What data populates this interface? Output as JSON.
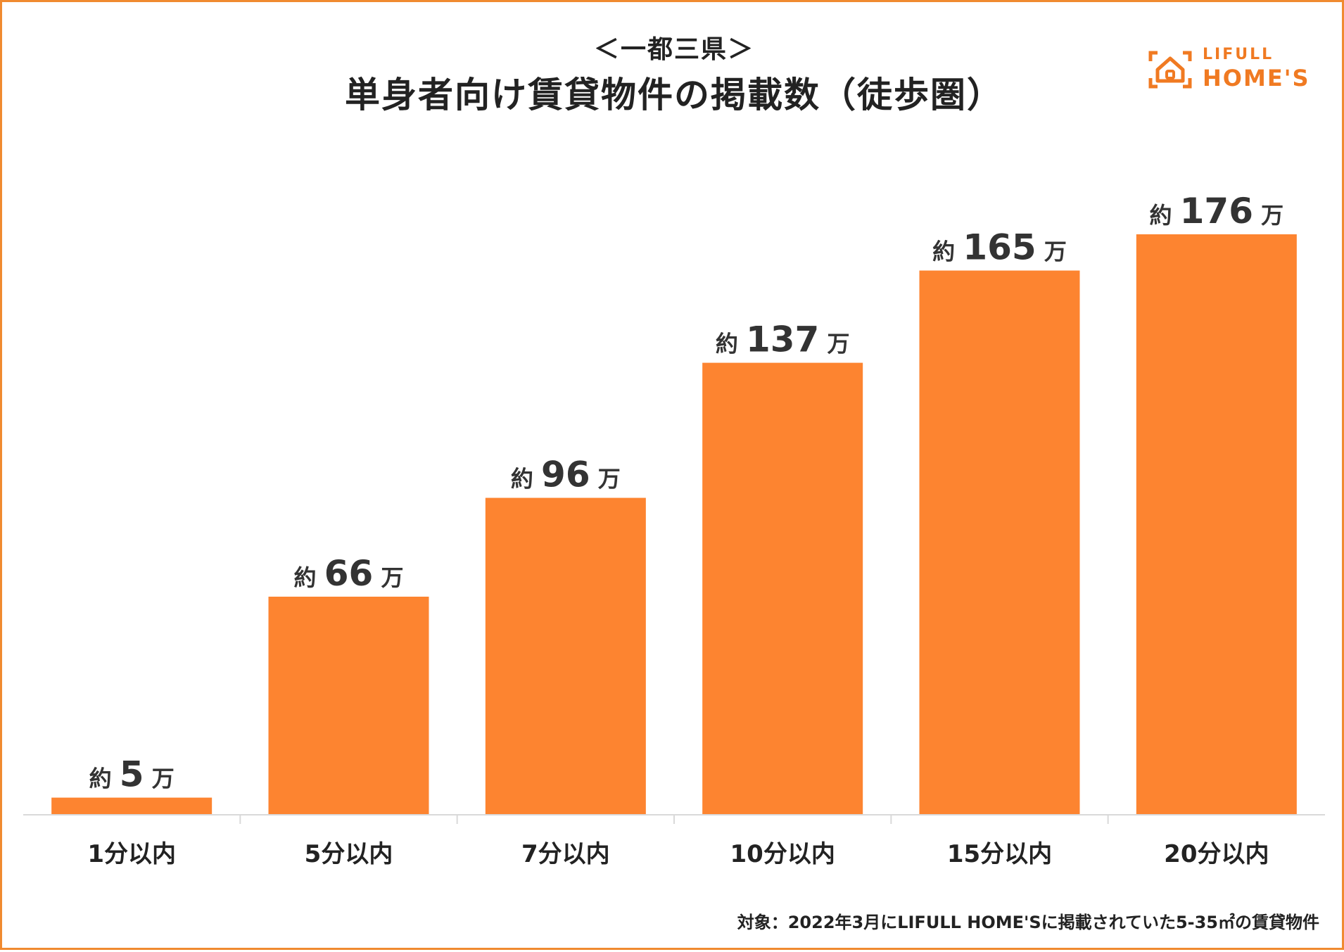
{
  "header": {
    "subtitle": "＜一都三県＞",
    "title": "単身者向け賃貸物件の掲載数（徒歩圏）"
  },
  "logo": {
    "line1": "LIFULL",
    "line2": "HOME'S",
    "icon": "house-icon",
    "color": "#f07a22"
  },
  "footnote": "対象：2022年3月にLIFULL HOME'Sに掲載されていた5-35㎡の賃貸物件",
  "colors": {
    "bar": "#fd8430",
    "border": "#f08a30",
    "text": "#222222"
  },
  "chart_data": {
    "type": "bar",
    "title": "単身者向け賃貸物件の掲載数（徒歩圏）",
    "subtitle": "＜一都三県＞",
    "categories": [
      "1分以内",
      "5分以内",
      "7分以内",
      "10分以内",
      "15分以内",
      "20分以内"
    ],
    "values": [
      5,
      66,
      96,
      137,
      165,
      176
    ],
    "unit": "万",
    "label_prefix": "約",
    "ylim": [
      0,
      176
    ],
    "grid": false,
    "legend": "none",
    "series": [
      {
        "values": [
          5,
          66,
          96,
          137,
          165,
          176
        ]
      }
    ]
  }
}
